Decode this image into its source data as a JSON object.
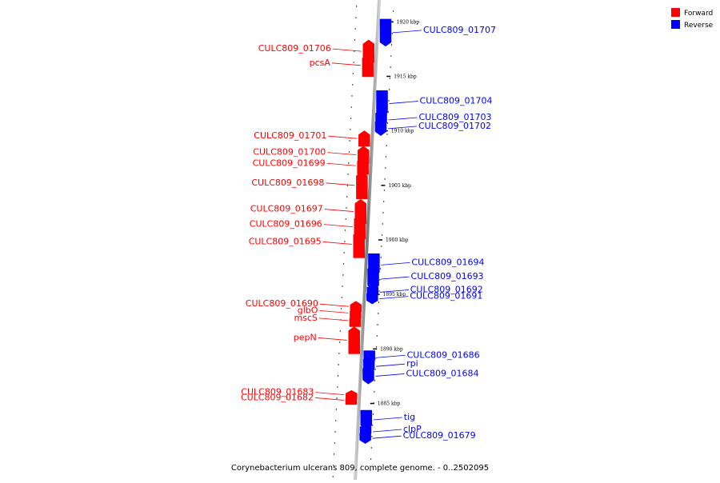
{
  "caption": "Corynebacterium ulcerans 809, complete genome. - 0..2502095",
  "legend": [
    {
      "label": "Forward",
      "color": "#ff0000"
    },
    {
      "label": "Reverse",
      "color": "#0000ff"
    }
  ],
  "colors": {
    "forward": "#ff0000",
    "reverse": "#0000ff",
    "backbone": "#888888"
  },
  "tick_unit": "kbp",
  "ticks": [
    1885,
    1890,
    1895,
    1900,
    1905,
    1910,
    1915,
    1920
  ],
  "genes": [
    {
      "label": "CULC809_01707",
      "strand": "reverse",
      "kb": 1919.0
    },
    {
      "label": "CULC809_01706",
      "strand": "forward",
      "kb": 1917.3
    },
    {
      "label": "pcsA",
      "strand": "forward",
      "kb": 1916.0
    },
    {
      "label": "CULC809_01704",
      "strand": "reverse",
      "kb": 1912.5
    },
    {
      "label": "CULC809_01703",
      "strand": "reverse",
      "kb": 1911.0
    },
    {
      "label": "CULC809_01702",
      "strand": "reverse",
      "kb": 1910.2
    },
    {
      "label": "CULC809_01701",
      "strand": "forward",
      "kb": 1909.3
    },
    {
      "label": "CULC809_01700",
      "strand": "forward",
      "kb": 1907.8
    },
    {
      "label": "CULC809_01699",
      "strand": "forward",
      "kb": 1906.8
    },
    {
      "label": "CULC809_01698",
      "strand": "forward",
      "kb": 1905.0
    },
    {
      "label": "CULC809_01697",
      "strand": "forward",
      "kb": 1902.6
    },
    {
      "label": "CULC809_01696",
      "strand": "forward",
      "kb": 1901.2
    },
    {
      "label": "CULC809_01695",
      "strand": "forward",
      "kb": 1899.6
    },
    {
      "label": "CULC809_01694",
      "strand": "reverse",
      "kb": 1897.7
    },
    {
      "label": "CULC809_01693",
      "strand": "reverse",
      "kb": 1896.4
    },
    {
      "label": "CULC809_01692",
      "strand": "reverse",
      "kb": 1895.2
    },
    {
      "label": "CULC809_01691",
      "strand": "reverse",
      "kb": 1894.6
    },
    {
      "label": "CULC809_01690",
      "strand": "forward",
      "kb": 1893.9
    },
    {
      "label": "glbO",
      "strand": "forward",
      "kb": 1893.3
    },
    {
      "label": "mscS",
      "strand": "forward",
      "kb": 1892.6
    },
    {
      "label": "pepN",
      "strand": "forward",
      "kb": 1890.8
    },
    {
      "label": "CULC809_01686",
      "strand": "reverse",
      "kb": 1889.2
    },
    {
      "label": "rpi",
      "strand": "reverse",
      "kb": 1888.4
    },
    {
      "label": "CULC809_01684",
      "strand": "reverse",
      "kb": 1887.5
    },
    {
      "label": "CULC809_01683",
      "strand": "forward",
      "kb": 1885.8
    },
    {
      "label": "CULC809_01682",
      "strand": "forward",
      "kb": 1885.3
    },
    {
      "label": "tig",
      "strand": "reverse",
      "kb": 1883.5
    },
    {
      "label": "clpP",
      "strand": "reverse",
      "kb": 1882.4
    },
    {
      "label": "CULC809_01679",
      "strand": "reverse",
      "kb": 1881.8
    }
  ]
}
